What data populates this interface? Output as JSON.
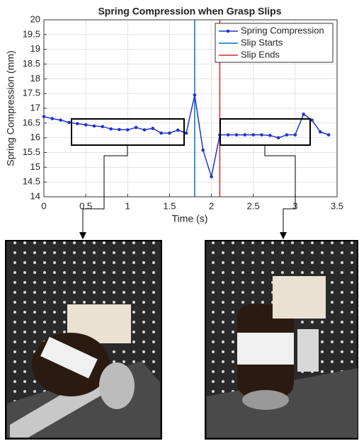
{
  "chart_data": {
    "type": "line",
    "title": "Spring Compression when Grasp Slips",
    "xlabel": "Time (s)",
    "ylabel": "Spring Compression (mm)",
    "x": [
      0,
      0.1,
      0.2,
      0.3,
      0.4,
      0.5,
      0.6,
      0.7,
      0.8,
      0.9,
      1.0,
      1.1,
      1.2,
      1.3,
      1.4,
      1.5,
      1.6,
      1.7,
      1.8,
      1.9,
      2.0,
      2.1,
      2.2,
      2.3,
      2.4,
      2.5,
      2.6,
      2.7,
      2.8,
      2.9,
      3.0,
      3.1,
      3.2,
      3.3,
      3.4
    ],
    "series": [
      {
        "name": "Spring Compression",
        "color": "#2233cc",
        "values": [
          16.72,
          16.65,
          16.6,
          16.52,
          16.48,
          16.44,
          16.4,
          16.38,
          16.3,
          16.28,
          16.27,
          16.35,
          16.27,
          16.32,
          16.16,
          16.16,
          16.26,
          16.16,
          17.45,
          15.58,
          14.68,
          16.1,
          16.1,
          16.1,
          16.1,
          16.1,
          16.1,
          16.08,
          16.0,
          16.1,
          16.1,
          16.8,
          16.6,
          16.2,
          16.1
        ]
      }
    ],
    "vlines": [
      {
        "name": "Slip Starts",
        "x": 1.8,
        "color": "#0072bd"
      },
      {
        "name": "Slip Ends",
        "x": 2.1,
        "color": "#d62728"
      }
    ],
    "xlim": [
      0,
      3.5
    ],
    "xticks": [
      0,
      0.5,
      1,
      1.5,
      2,
      2.5,
      3,
      3.5
    ],
    "ylim": [
      14,
      20
    ],
    "yticks": [
      14,
      14.5,
      15,
      15.5,
      16,
      16.5,
      17,
      17.5,
      18,
      18.5,
      19,
      19.5,
      20
    ],
    "grid": true,
    "legend": "upper right"
  }
}
